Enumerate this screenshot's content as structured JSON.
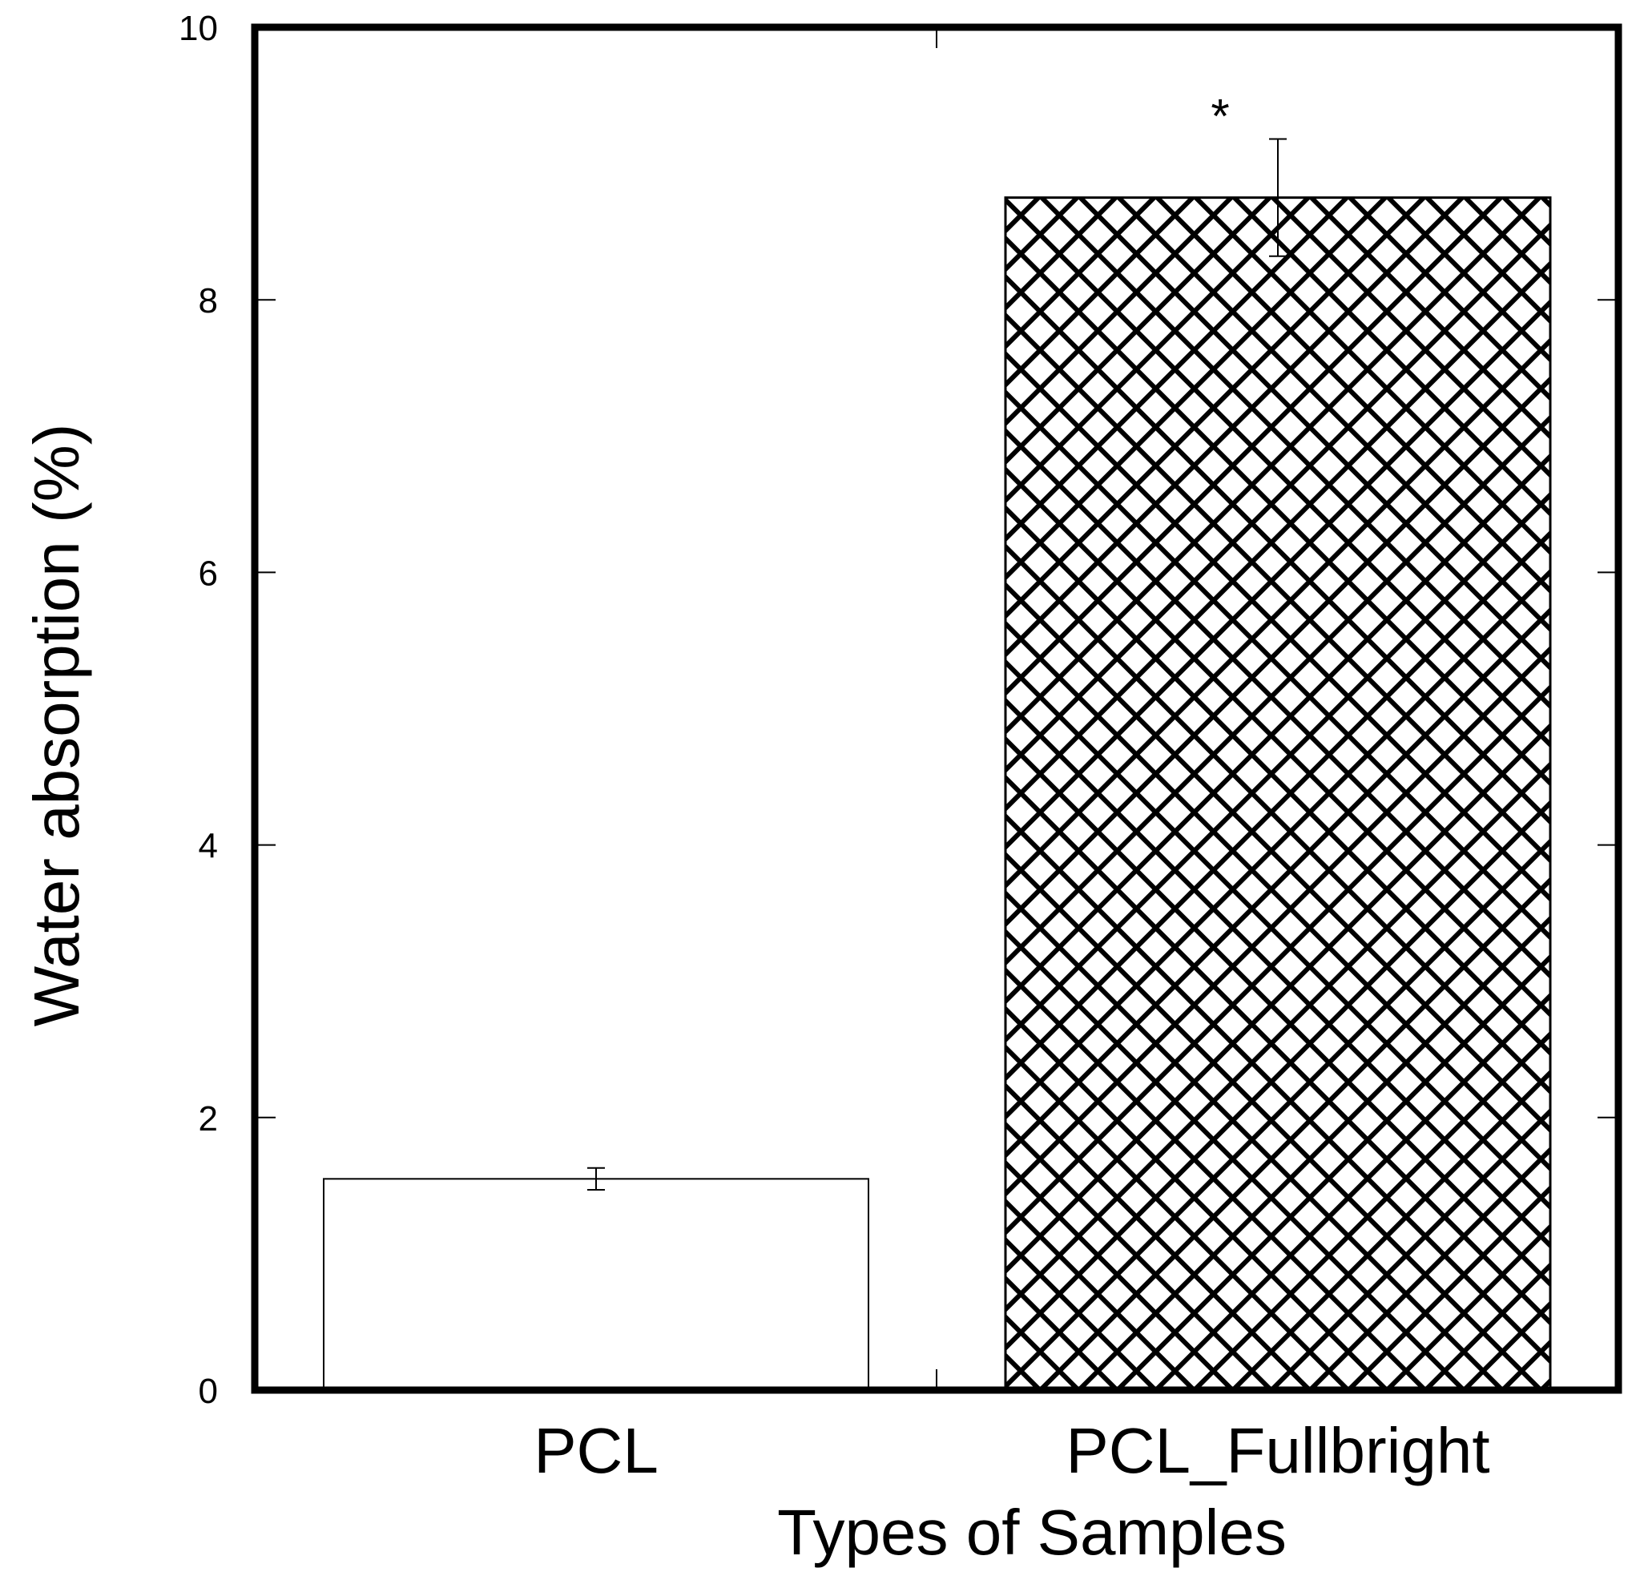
{
  "chart_data": {
    "type": "bar",
    "title": "",
    "xlabel": "Types of Samples",
    "ylabel": "Water absorption (%)",
    "categories": [
      "PCL",
      "PCL_Fullbright"
    ],
    "values": [
      1.55,
      8.75
    ],
    "errors": [
      0.08,
      0.43
    ],
    "patterns": [
      "none",
      "crosshatch"
    ],
    "annotations": [
      "",
      "*"
    ],
    "ylim": [
      0,
      10
    ],
    "yticks": [
      0,
      2,
      4,
      6,
      8,
      10
    ],
    "grid": false,
    "legend": "none"
  }
}
